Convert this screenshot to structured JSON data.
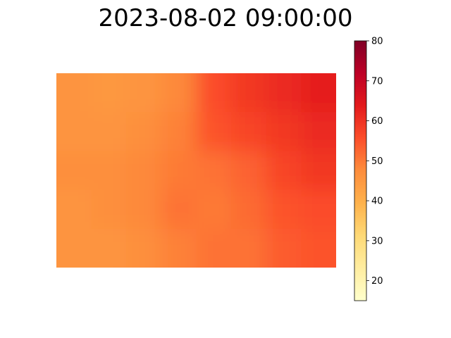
{
  "chart_data": {
    "type": "heatmap",
    "title": "2023-08-02 09:00:00",
    "colormap": "YlOrRd",
    "colorbar": {
      "range": [
        15,
        80
      ],
      "ticks": [
        20,
        30,
        40,
        50,
        60,
        70,
        80
      ]
    },
    "grid_shape": [
      5,
      8
    ],
    "values": [
      [
        46,
        45,
        46,
        48,
        56,
        59,
        61,
        63
      ],
      [
        46,
        46,
        47,
        49,
        55,
        57,
        59,
        61
      ],
      [
        47,
        47,
        48,
        50,
        51,
        53,
        57,
        59
      ],
      [
        46,
        47,
        48,
        51,
        50,
        52,
        55,
        56
      ],
      [
        46,
        46,
        47,
        49,
        51,
        51,
        54,
        55
      ]
    ],
    "axes_visible": false,
    "grid": false
  }
}
